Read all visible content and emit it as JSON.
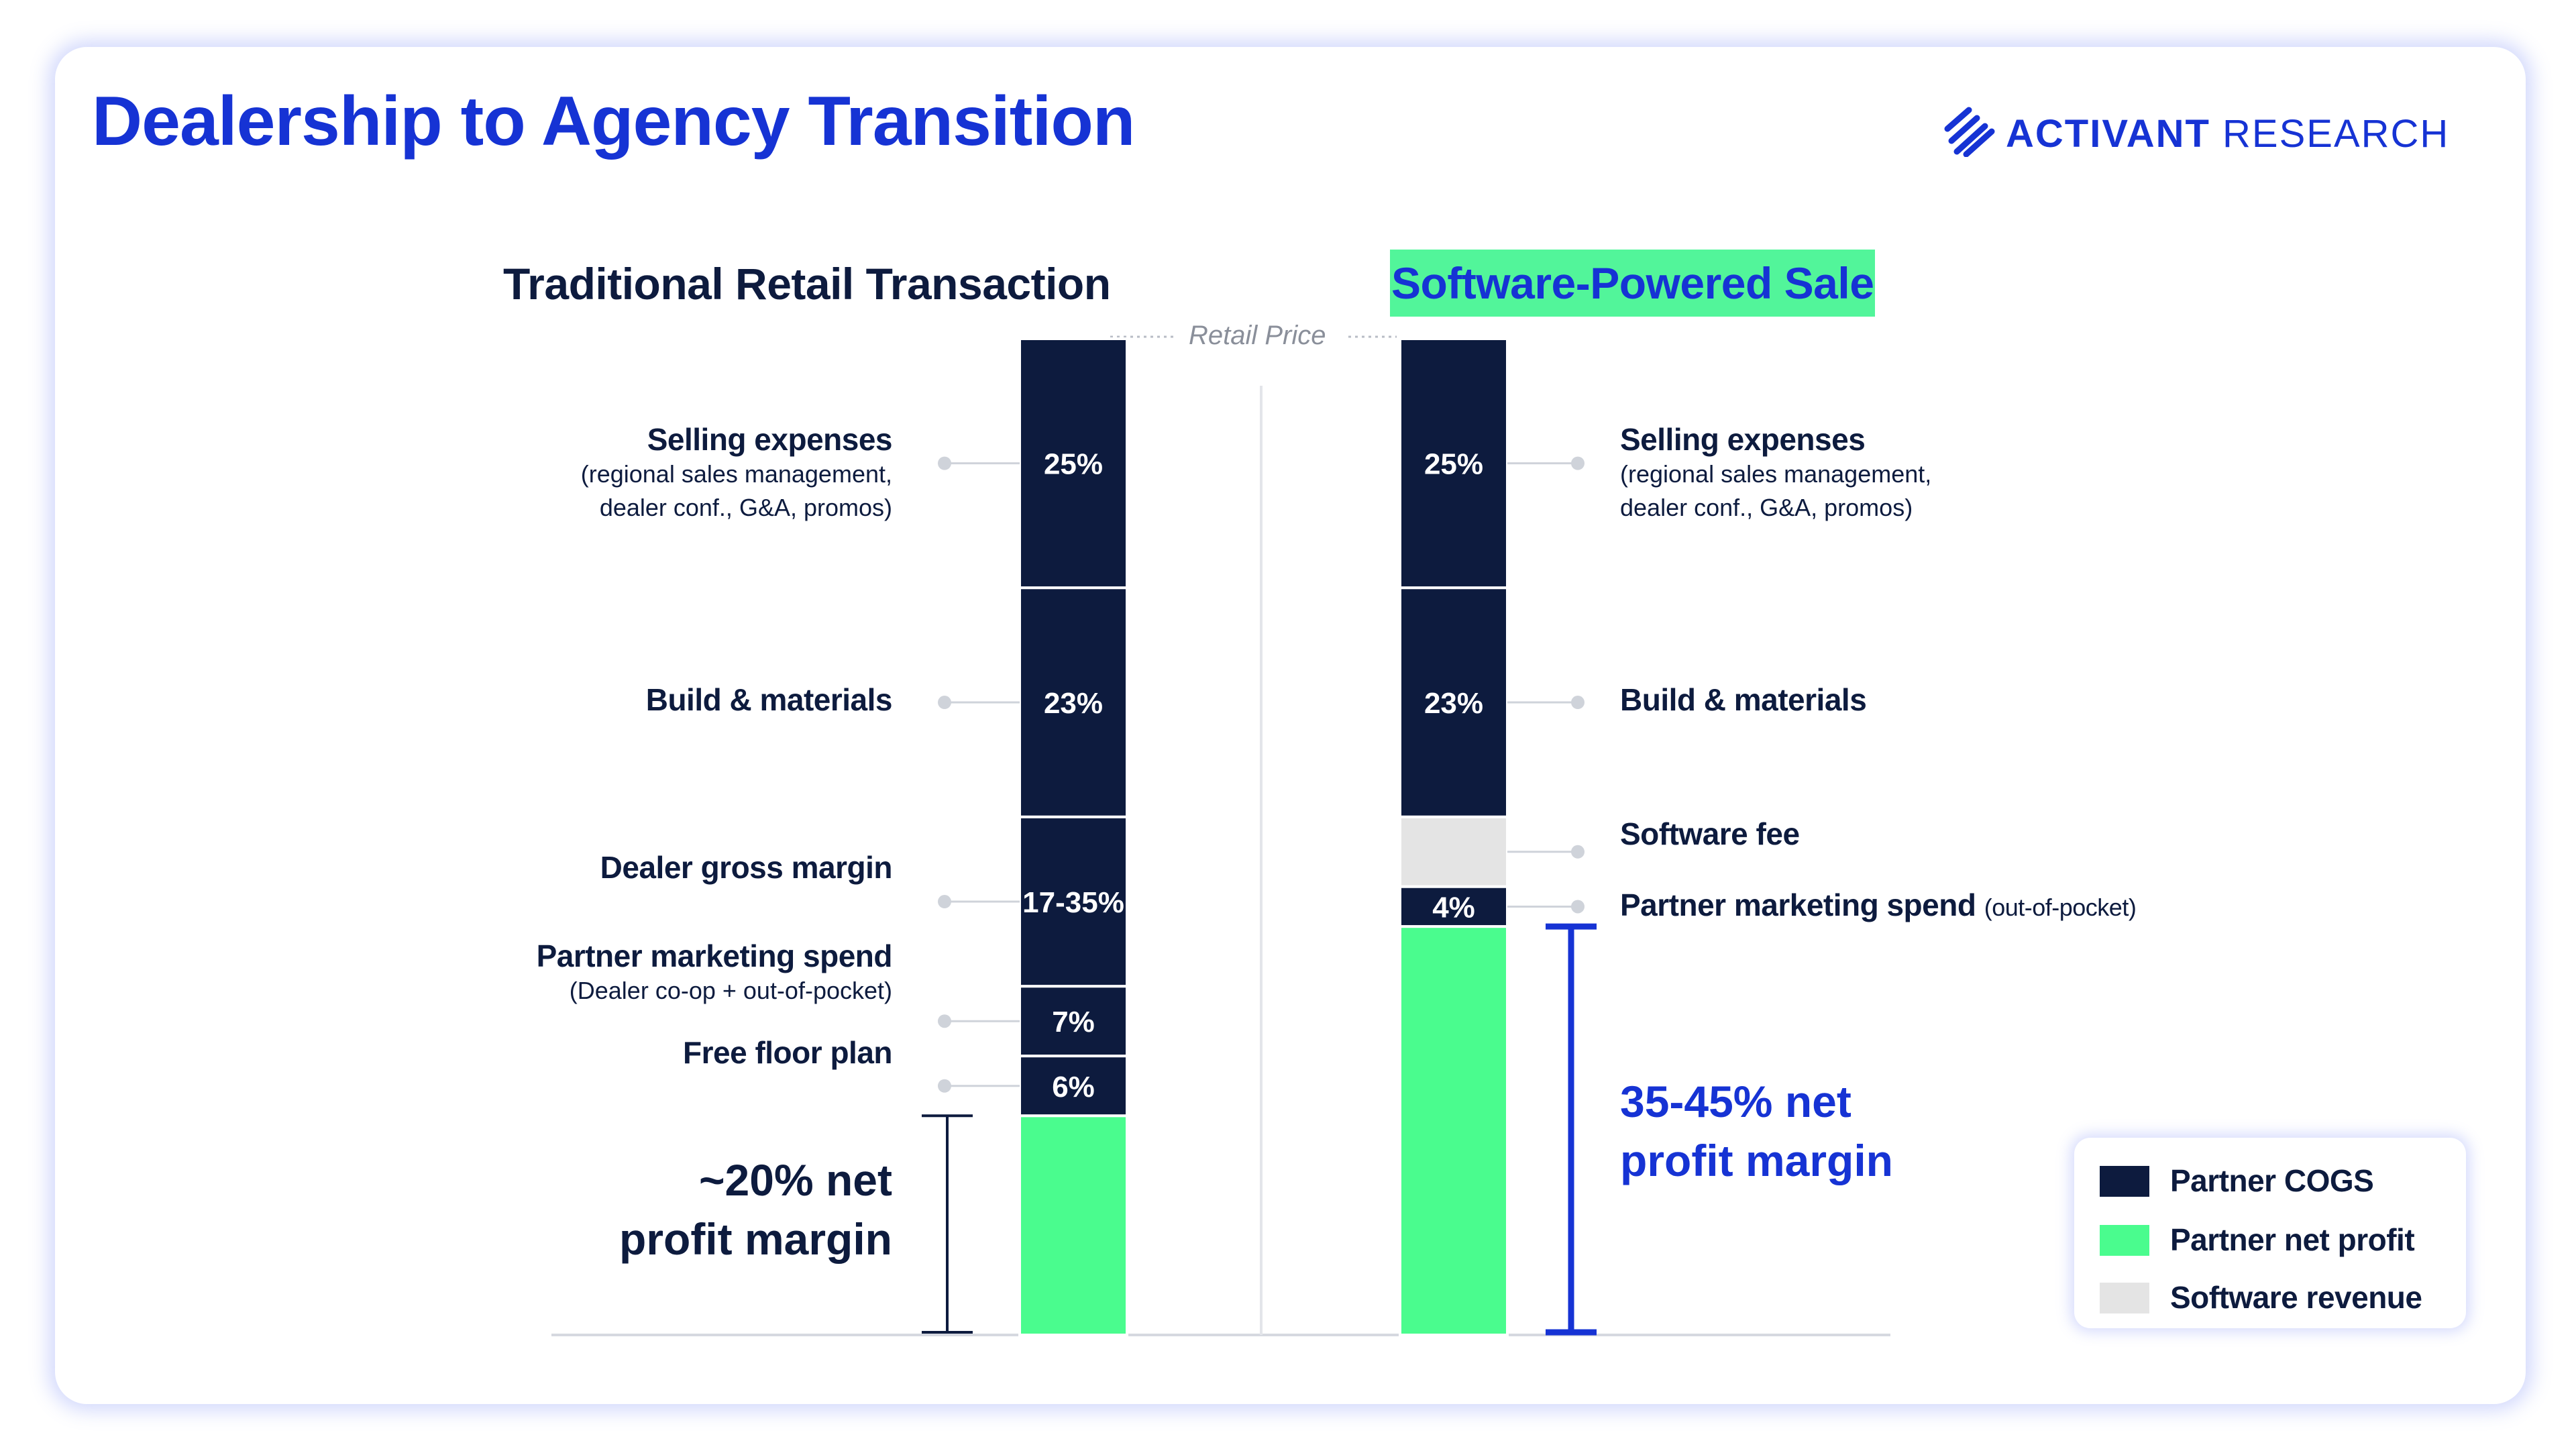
{
  "title": "Dealership to Agency Transition",
  "brand": {
    "name_bold": "ACTIVANT",
    "name_light": "RESEARCH"
  },
  "colors": {
    "cogs": "#0d1b3e",
    "net_profit": "#4afc8e",
    "software_revenue": "#e4e4e4",
    "accent": "#1633d4",
    "highlight": "#52f59a"
  },
  "chart_data": [
    {
      "type": "bar",
      "stacked": true,
      "title": "Traditional Retail Transaction",
      "top_label": "Retail Price",
      "segments": [
        {
          "category": "Partner COGS",
          "label": "Selling expenses",
          "sub": [
            "(regional sales management,",
            "dealer conf., G&A, promos)"
          ],
          "value_label": "25%",
          "value": 25
        },
        {
          "category": "Partner COGS",
          "label": "Build & materials",
          "value_label": "23%",
          "value": 23
        },
        {
          "category": "Partner COGS",
          "label": "Dealer gross margin",
          "value_label": "17-35%",
          "value": 17
        },
        {
          "category": "Partner COGS",
          "label": "Partner marketing spend",
          "sub": [
            "(Dealer co-op + out-of-pocket)"
          ],
          "value_label": "7%",
          "value": 7
        },
        {
          "category": "Partner COGS",
          "label": "Free floor plan",
          "value_label": "6%",
          "value": 6
        },
        {
          "category": "Partner net profit",
          "label": "~20% net profit margin",
          "value_label": "",
          "value": 22
        }
      ],
      "net_margin_lines": [
        "~20% net",
        "profit margin"
      ]
    },
    {
      "type": "bar",
      "stacked": true,
      "title": "Software-Powered Sale",
      "segments": [
        {
          "category": "Partner COGS",
          "label": "Selling expenses",
          "sub": [
            "(regional sales management,",
            "dealer conf., G&A, promos)"
          ],
          "value_label": "25%",
          "value": 25
        },
        {
          "category": "Partner COGS",
          "label": "Build & materials",
          "value_label": "23%",
          "value": 23
        },
        {
          "category": "Software revenue",
          "label": "Software fee",
          "value_label": "",
          "value": 7
        },
        {
          "category": "Partner COGS",
          "label": "Partner marketing spend",
          "inline_sub": "(out-of-pocket)",
          "value_label": "4%",
          "value": 4
        },
        {
          "category": "Partner net profit",
          "label": "35-45% net profit margin",
          "value_label": "",
          "value": 41
        }
      ],
      "net_margin_lines": [
        "35-45% net",
        "profit margin"
      ]
    }
  ],
  "legend": [
    {
      "label": "Partner COGS",
      "color": "#0d1b3e"
    },
    {
      "label": "Partner net profit",
      "color": "#4afc8e"
    },
    {
      "label": "Software revenue",
      "color": "#e4e4e4"
    }
  ]
}
